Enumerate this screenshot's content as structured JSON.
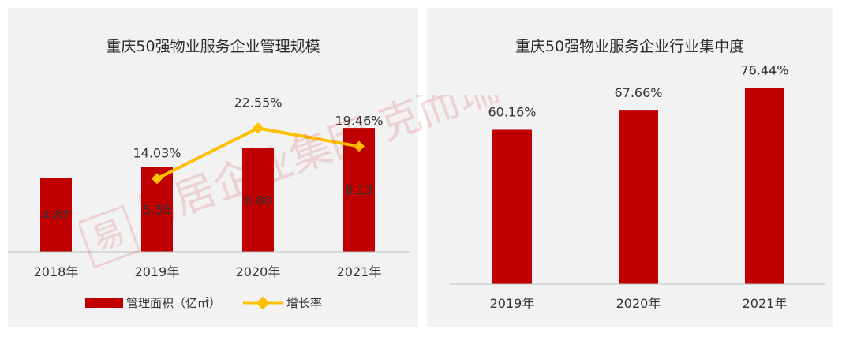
{
  "colors": {
    "bar": "#c00000",
    "line": "#ffc000",
    "panel": "#f2f2f2",
    "axis": "#bfbfbf"
  },
  "watermark": {
    "text": "易居企业集团 克而瑞",
    "mark": "易"
  },
  "chart_data": [
    {
      "type": "bar+line",
      "title": "重庆50强物业服务企业管理规模",
      "categories": [
        "2018年",
        "2019年",
        "2020年",
        "2021年"
      ],
      "series": [
        {
          "name": "管理面积（亿㎡）",
          "type": "bar",
          "values": [
            4.87,
            5.55,
            6.8,
            8.13
          ],
          "labels": [
            "4.87",
            "5.55",
            "6.80",
            "8.13"
          ]
        },
        {
          "name": "增长率",
          "type": "line",
          "x": [
            "2019年",
            "2020年",
            "2021年"
          ],
          "values": [
            14.03,
            22.55,
            19.46
          ],
          "labels": [
            "14.03%",
            "22.55%",
            "19.46%"
          ]
        }
      ],
      "legend": "bottom"
    },
    {
      "type": "bar",
      "title": "重庆50强物业服务企业行业集中度",
      "categories": [
        "2019年",
        "2020年",
        "2021年"
      ],
      "values": [
        60.16,
        67.66,
        76.44
      ],
      "labels": [
        "60.16%",
        "67.66%",
        "76.44%"
      ]
    }
  ]
}
